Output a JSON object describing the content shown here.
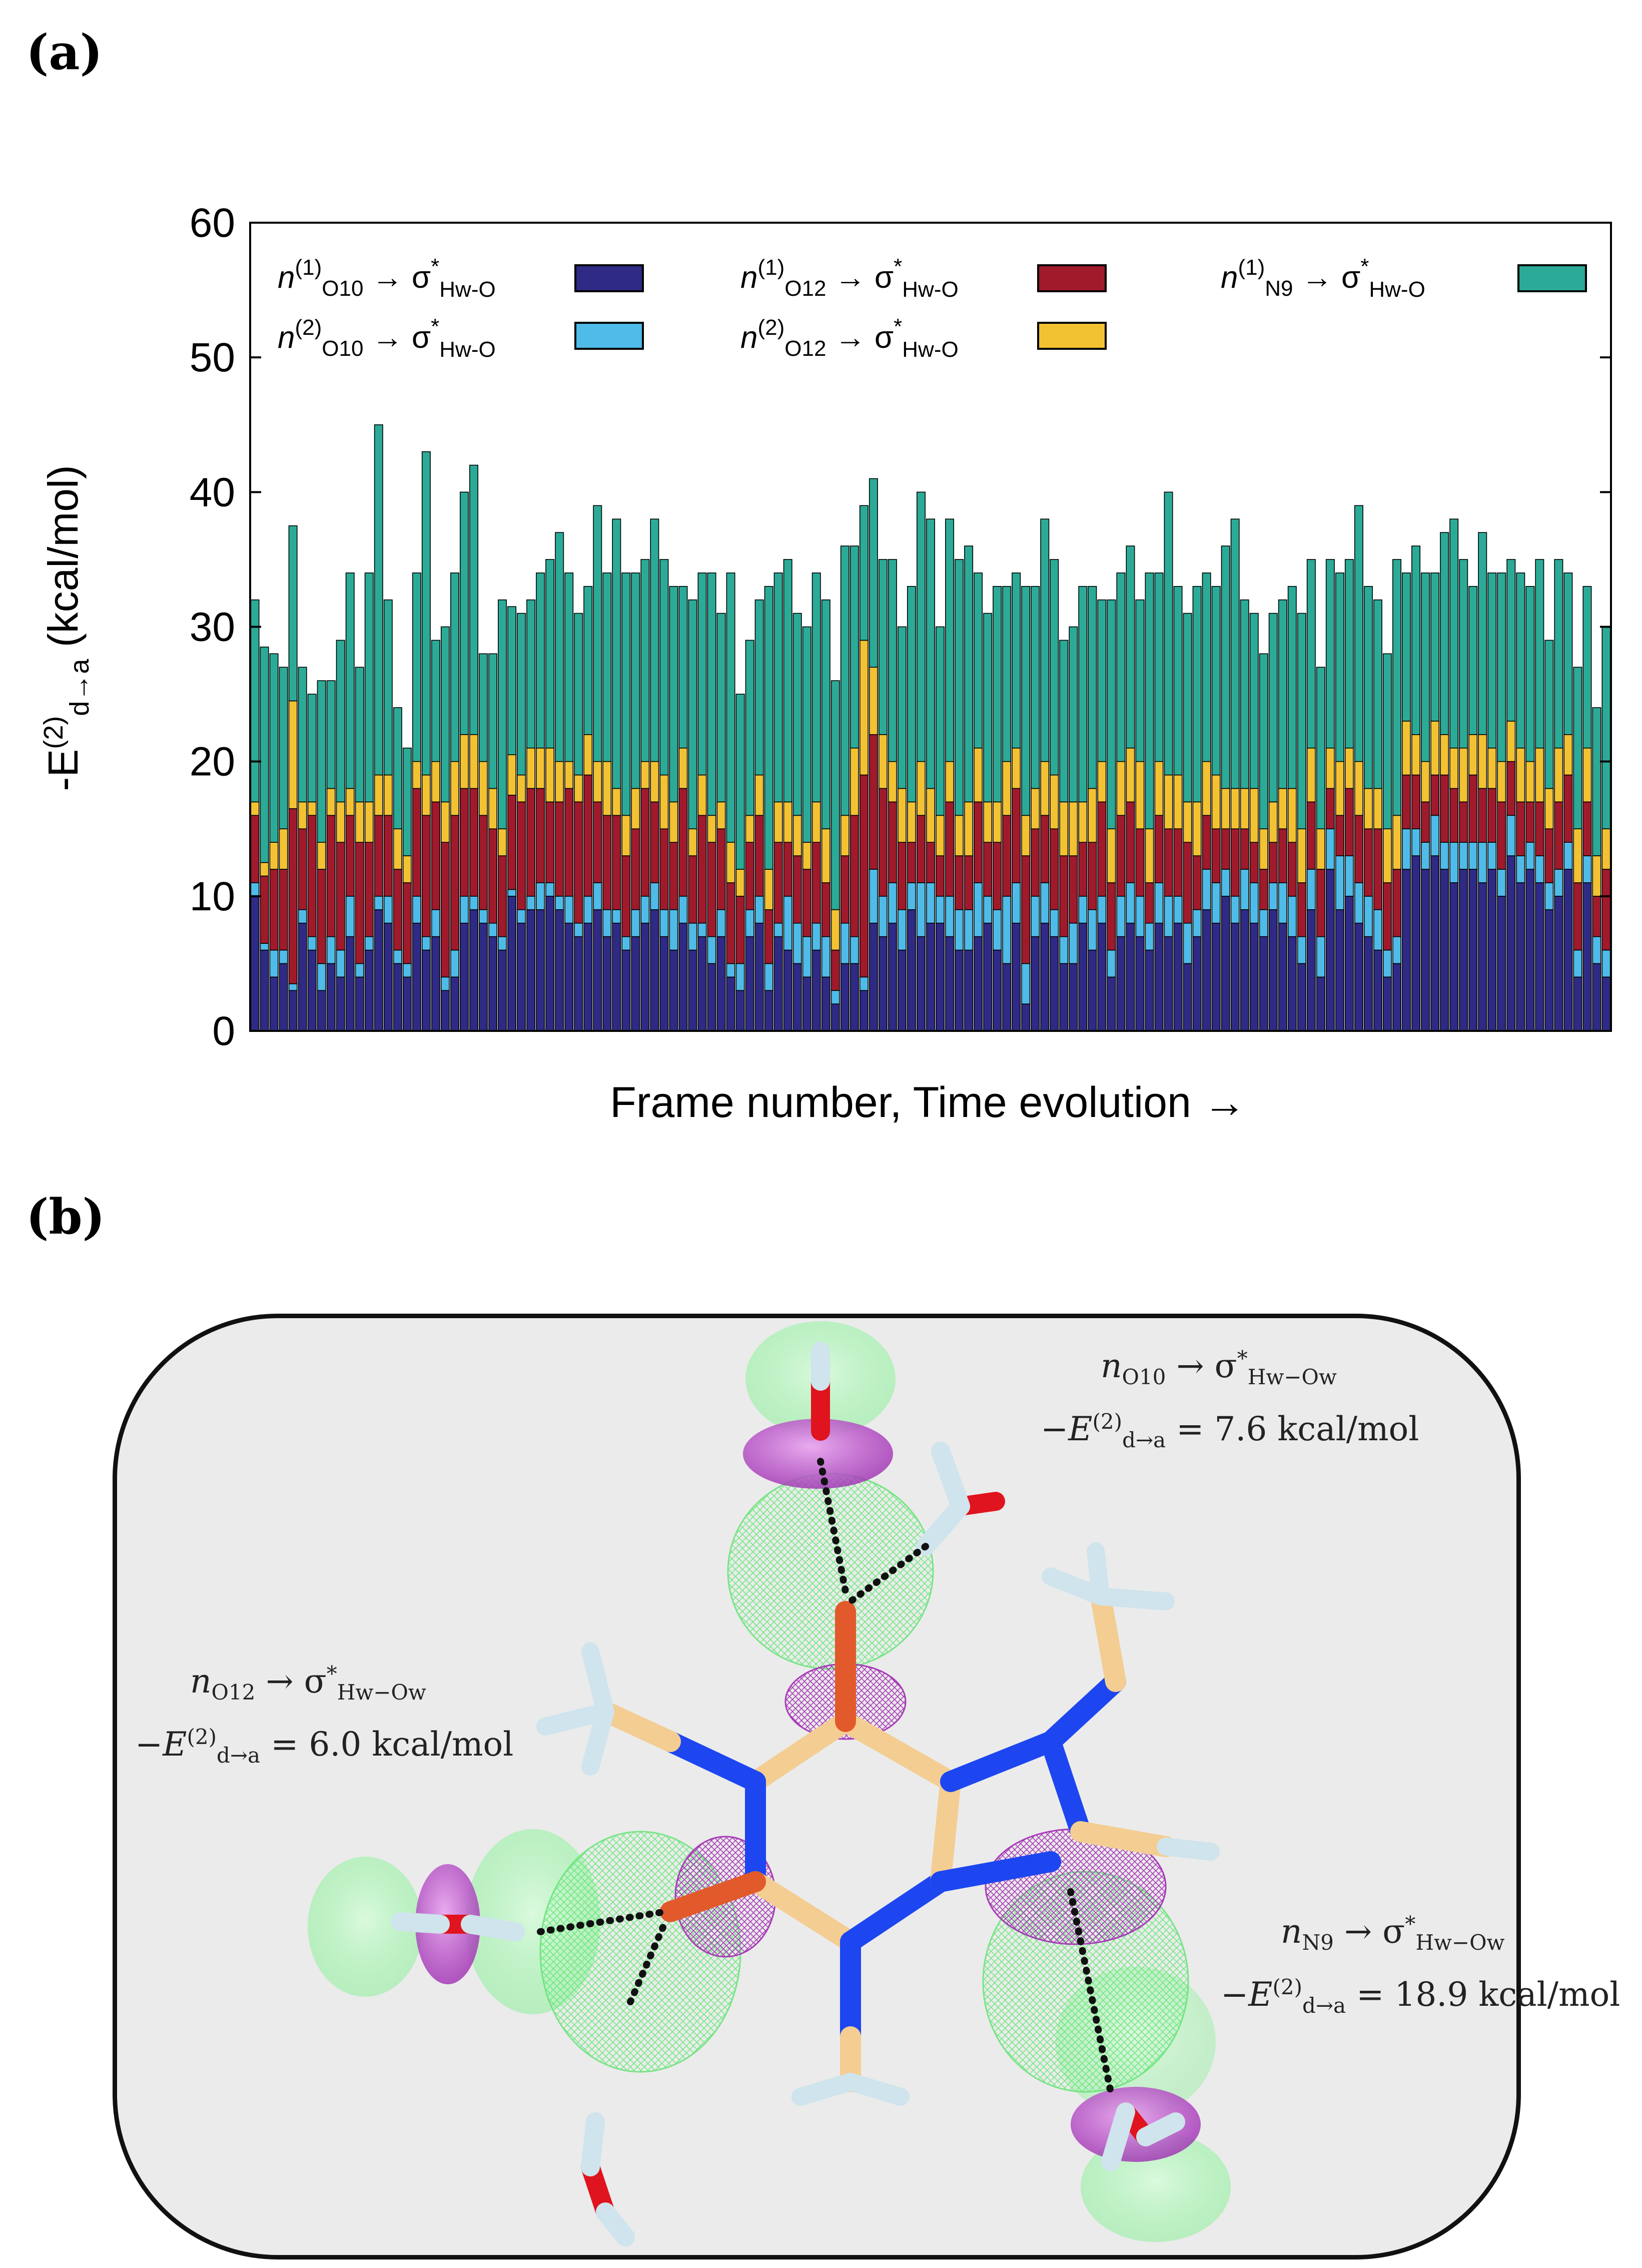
{
  "panel_a_label": "(a)",
  "panel_b_label": "(b)",
  "chart_data": {
    "type": "bar",
    "stacked": true,
    "title": "",
    "xlabel": "Frame number, Time evolution →",
    "ylabel": "-E(2)d→a (kcal/mol)",
    "ylim": [
      0,
      60
    ],
    "yticks": [
      0,
      10,
      20,
      30,
      40,
      50,
      60
    ],
    "grid": false,
    "legend_position": "top",
    "frame_count": 143,
    "series": [
      {
        "name": "n(1)O10 → σ*Hw-O",
        "color": "#2e2a85",
        "values": [
          10,
          6,
          4,
          5,
          3,
          8,
          6,
          3,
          5,
          4,
          7,
          4,
          6,
          9,
          8,
          5,
          4,
          8,
          6,
          7,
          3,
          4,
          8,
          9,
          8,
          7,
          6,
          10,
          8,
          9,
          9,
          10,
          9,
          8,
          7,
          8,
          9,
          7,
          8,
          6,
          7,
          8,
          9,
          7,
          6,
          8,
          6,
          7,
          5,
          7,
          4,
          3,
          7,
          8,
          3,
          7,
          6,
          5,
          4,
          6,
          4,
          2,
          5,
          5,
          3,
          8,
          7,
          8,
          6,
          9,
          7,
          8,
          8,
          7,
          6,
          6,
          7,
          8,
          6,
          5,
          8,
          2,
          7,
          8,
          7,
          5,
          5,
          8,
          6,
          8,
          4,
          7,
          8,
          7,
          6,
          8,
          7,
          8,
          5,
          7,
          9,
          8,
          10,
          8,
          9,
          8,
          7,
          9,
          8,
          7,
          5,
          9,
          4,
          12,
          9,
          10,
          8,
          7,
          6,
          4,
          5,
          12,
          13,
          12,
          13,
          12,
          11,
          12,
          12,
          11,
          12,
          10,
          13,
          11,
          12,
          11,
          9,
          10,
          12,
          4,
          11,
          5,
          4
        ]
      },
      {
        "name": "n(2)O10 → σ*Hw-O",
        "color": "#4fbbe8",
        "values": [
          1,
          0.5,
          2,
          1,
          0.5,
          1,
          1,
          2,
          2,
          2,
          3,
          1,
          1,
          1,
          2,
          1,
          1,
          2,
          1,
          2,
          1,
          2,
          2,
          1,
          1,
          1,
          1,
          0.5,
          1,
          1,
          2,
          1,
          1,
          2,
          1,
          2,
          2,
          2,
          1,
          1,
          2,
          2,
          2,
          2,
          3,
          2,
          2,
          1,
          2,
          2,
          1,
          2,
          2,
          2,
          2,
          1,
          4,
          3,
          3,
          2,
          3,
          1,
          3,
          2,
          1,
          4,
          3,
          3,
          3,
          2,
          4,
          3,
          2,
          3,
          3,
          3,
          4,
          2,
          3,
          5,
          3,
          3,
          3,
          3,
          2,
          2,
          3,
          2,
          3,
          2,
          2,
          3,
          3,
          3,
          2,
          3,
          3,
          2,
          3,
          2,
          3,
          3,
          2,
          2,
          3,
          3,
          2,
          2,
          3,
          3,
          2,
          3,
          3,
          3,
          4,
          3,
          3,
          3,
          3,
          2,
          2,
          3,
          2,
          2,
          3,
          2,
          3,
          2,
          2,
          3,
          2,
          2,
          3,
          2,
          2,
          2,
          2,
          2,
          2,
          2,
          2,
          2,
          2
        ]
      },
      {
        "name": "n(1)O12 → σ*Hw-O",
        "color": "#a01a2c",
        "values": [
          5,
          5,
          6,
          6,
          13,
          6,
          9,
          7,
          9,
          8,
          6,
          9,
          7,
          6,
          6,
          6,
          6,
          8,
          9,
          8,
          10,
          10,
          8,
          8,
          7,
          7,
          6,
          7,
          8,
          8,
          7,
          6,
          7,
          8,
          9,
          9,
          6,
          7,
          7,
          6,
          6,
          8,
          6,
          6,
          5,
          8,
          5,
          8,
          7,
          6,
          6,
          5,
          5,
          6,
          4,
          6,
          4,
          5,
          5,
          6,
          4,
          3,
          5,
          9,
          15,
          10,
          8,
          6,
          5,
          3,
          5,
          3,
          3,
          7,
          4,
          4,
          6,
          4,
          5,
          6,
          7,
          8,
          5,
          5,
          6,
          6,
          5,
          4,
          5,
          7,
          5,
          6,
          6,
          5,
          3,
          5,
          5,
          5,
          6,
          4,
          4,
          4,
          3,
          5,
          3,
          3,
          3,
          3,
          4,
          4,
          4,
          5,
          5,
          3,
          3,
          5,
          5,
          5,
          6,
          5,
          5,
          4,
          4,
          3,
          3,
          5,
          4,
          3,
          5,
          4,
          4,
          5,
          4,
          4,
          3,
          4,
          4,
          5,
          5,
          5,
          4,
          3,
          6
        ]
      },
      {
        "name": "n(2)O12 → σ*Hw-O",
        "color": "#f2c232",
        "values": [
          1,
          1,
          2,
          3,
          8,
          2,
          1,
          2,
          2,
          3,
          2,
          3,
          3,
          3,
          3,
          3,
          2,
          2,
          3,
          3,
          3,
          4,
          4,
          4,
          4,
          3,
          2,
          3,
          2,
          3,
          3,
          4,
          3,
          2,
          2,
          3,
          3,
          4,
          2,
          3,
          3,
          2,
          3,
          4,
          3,
          3,
          2,
          3,
          2,
          2,
          3,
          2,
          2,
          3,
          3,
          3,
          3,
          3,
          2,
          3,
          4,
          3,
          3,
          5,
          10,
          5,
          4,
          3,
          4,
          3,
          4,
          4,
          3,
          3,
          3,
          4,
          4,
          3,
          3,
          4,
          3,
          3,
          3,
          4,
          4,
          4,
          4,
          3,
          4,
          3,
          4,
          4,
          4,
          5,
          4,
          4,
          4,
          4,
          3,
          4,
          4,
          4,
          3,
          3,
          3,
          4,
          3,
          3,
          3,
          4,
          4,
          4,
          3,
          3,
          4,
          3,
          4,
          3,
          3,
          4,
          4,
          4,
          3,
          3,
          4,
          3,
          3,
          4,
          3,
          4,
          3,
          3,
          3,
          4,
          3,
          4,
          3,
          4,
          3,
          4,
          4,
          3,
          3
        ]
      },
      {
        "name": "n(1)N9 → σ*Hw-O",
        "color": "#2bab97",
        "values": [
          15,
          16,
          14,
          12,
          13,
          10,
          8,
          12,
          8,
          12,
          16,
          10,
          17,
          26,
          13,
          9,
          8,
          14,
          24,
          9,
          13,
          14,
          18,
          20,
          8,
          10,
          17,
          11,
          12,
          11,
          13,
          14,
          17,
          14,
          12,
          11,
          19,
          14,
          20,
          18,
          16,
          15,
          18,
          16,
          16,
          12,
          17,
          15,
          18,
          14,
          20,
          13,
          13,
          13,
          21,
          17,
          18,
          15,
          16,
          17,
          17,
          17,
          20,
          15,
          10,
          14,
          13,
          15,
          12,
          16,
          20,
          20,
          14,
          18,
          19,
          19,
          13,
          14,
          16,
          13,
          13,
          17,
          15,
          18,
          16,
          12,
          13,
          16,
          15,
          12,
          17,
          14,
          15,
          12,
          19,
          14,
          21,
          14,
          14,
          16,
          14,
          14,
          18,
          20,
          14,
          13,
          13,
          14,
          14,
          15,
          16,
          14,
          12,
          14,
          14,
          14,
          19,
          15,
          14,
          13,
          19,
          11,
          14,
          14,
          11,
          15,
          17,
          14,
          11,
          15,
          13,
          14,
          12,
          13,
          13,
          14,
          11,
          14,
          12,
          12,
          12,
          11,
          15
        ]
      }
    ],
    "legend": [
      {
        "label_main": "n",
        "sup": "(1)",
        "sub": "O10",
        "arrow": " → σ",
        "star": "*",
        "sub2": "Hw-O",
        "color": "#2e2a85"
      },
      {
        "label_main": "n",
        "sup": "(2)",
        "sub": "O10",
        "arrow": " → σ",
        "star": "*",
        "sub2": "Hw-O",
        "color": "#4fbbe8"
      },
      {
        "label_main": "n",
        "sup": "(1)",
        "sub": "O12",
        "arrow": " → σ",
        "star": "*",
        "sub2": "Hw-O",
        "color": "#a01a2c"
      },
      {
        "label_main": "n",
        "sup": "(2)",
        "sub": "O12",
        "arrow": " → σ",
        "star": "*",
        "sub2": "Hw-O",
        "color": "#f2c232"
      },
      {
        "label_main": "n",
        "sup": "(1)",
        "sub": "N9",
        "arrow": " → σ",
        "star": "*",
        "sub2": "Hw-O",
        "color": "#2bab97"
      }
    ]
  },
  "panel_b": {
    "annotations": [
      {
        "id": "o10",
        "transition_n": "n",
        "transition_sub": "O10",
        "arrow": " → σ",
        "star": "*",
        "sigma_sub": "Hw−Ow",
        "energy_prefix": "−E",
        "energy_sup": "(2)",
        "energy_sub": "d→a",
        "energy_value": " = 7.6 kcal/mol"
      },
      {
        "id": "o12",
        "transition_n": "n",
        "transition_sub": "O12",
        "arrow": " → σ",
        "star": "*",
        "sigma_sub": "Hw−Ow",
        "energy_prefix": "−E",
        "energy_sup": "(2)",
        "energy_sub": "d→a",
        "energy_value": " = 6.0 kcal/mol"
      },
      {
        "id": "n9",
        "transition_n": "n",
        "transition_sub": "N9",
        "arrow": " → σ",
        "star": "*",
        "sigma_sub": "Hw−Ow",
        "energy_prefix": "−E",
        "energy_sup": "(2)",
        "energy_sub": "d→a",
        "energy_value": " = 18.9 kcal/mol"
      }
    ],
    "colors": {
      "carbon": "#f3cd92",
      "nitrogen": "#1d46f0",
      "oxygen": "#e0141e",
      "hydrogen": "#cfe4ec",
      "orbital_green": "#7ef58a",
      "orbital_purple": "#b040c0",
      "bond_dots": "#111111"
    }
  }
}
